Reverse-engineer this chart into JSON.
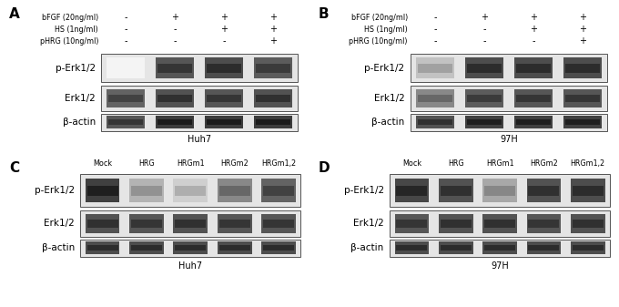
{
  "panel_A": {
    "label": "A",
    "cell_line": "Huh7",
    "conditions": [
      "bFGF (20ng/ml)",
      "HS (1ng/ml)",
      "pHRG (10ng/ml)"
    ],
    "signs": [
      [
        "-",
        "+",
        "+",
        "+"
      ],
      [
        "-",
        "-",
        "+",
        "+"
      ],
      [
        "-",
        "-",
        "-",
        "+"
      ]
    ],
    "bands": {
      "p-Erk1/2": [
        0.05,
        0.78,
        0.82,
        0.75
      ],
      "Erk1/2": [
        0.72,
        0.8,
        0.78,
        0.8
      ],
      "beta-actin": [
        0.78,
        0.9,
        0.9,
        0.9
      ]
    }
  },
  "panel_B": {
    "label": "B",
    "cell_line": "97H",
    "conditions": [
      "bFGF (20ng/ml)",
      "HS (1ng/ml)",
      "pHRG (10ng/ml)"
    ],
    "signs": [
      [
        "-",
        "+",
        "+",
        "+"
      ],
      [
        "-",
        "-",
        "+",
        "+"
      ],
      [
        "-",
        "-",
        "-",
        "+"
      ]
    ],
    "bands": {
      "p-Erk1/2": [
        0.28,
        0.82,
        0.82,
        0.82
      ],
      "Erk1/2": [
        0.55,
        0.75,
        0.78,
        0.78
      ],
      "beta-actin": [
        0.8,
        0.88,
        0.88,
        0.88
      ]
    }
  },
  "panel_C": {
    "label": "C",
    "cell_line": "Huh7",
    "conditions": [
      "Mock",
      "HRG",
      "HRGm1",
      "HRGm2",
      "HRGm1,2"
    ],
    "bands": {
      "p-Erk1/2": [
        0.88,
        0.35,
        0.22,
        0.55,
        0.72
      ],
      "Erk1/2": [
        0.8,
        0.78,
        0.8,
        0.78,
        0.78
      ],
      "beta-actin": [
        0.82,
        0.82,
        0.82,
        0.82,
        0.82
      ]
    }
  },
  "panel_D": {
    "label": "D",
    "cell_line": "97H",
    "conditions": [
      "Mock",
      "HRG",
      "HRGm1",
      "HRGm2",
      "HRGm1,2"
    ],
    "bands": {
      "p-Erk1/2": [
        0.85,
        0.8,
        0.4,
        0.8,
        0.82
      ],
      "Erk1/2": [
        0.78,
        0.8,
        0.8,
        0.78,
        0.8
      ],
      "beta-actin": [
        0.82,
        0.82,
        0.82,
        0.82,
        0.82
      ]
    }
  }
}
